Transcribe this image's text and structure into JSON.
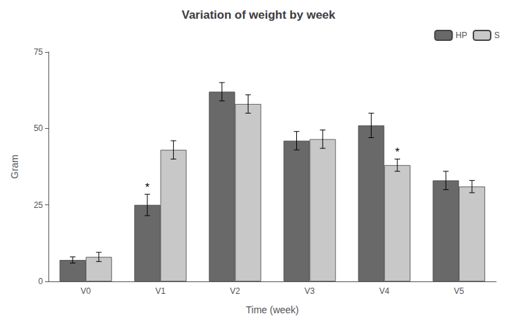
{
  "chart_data": {
    "type": "bar",
    "title": "Variation of weight by week",
    "xlabel": "Time (week)",
    "ylabel": "Gram",
    "categories": [
      "V0",
      "V1",
      "V2",
      "V3",
      "V4",
      "V5"
    ],
    "series": [
      {
        "name": "HP",
        "color": "#696969",
        "values": [
          7,
          25,
          62,
          46,
          51,
          33
        ],
        "errors": [
          1,
          3.5,
          3,
          3,
          4,
          3
        ]
      },
      {
        "name": "S",
        "color": "#c8c8c8",
        "values": [
          8,
          43,
          58,
          46.5,
          38,
          31
        ],
        "errors": [
          1.5,
          3,
          3,
          3,
          2,
          2
        ]
      }
    ],
    "annotations": [
      {
        "text": "*",
        "category": "V1",
        "series": "HP"
      },
      {
        "text": "*",
        "category": "V4",
        "series": "S"
      }
    ],
    "ylim": [
      0,
      75
    ],
    "yticks": [
      0,
      25,
      50,
      75
    ],
    "grid": false,
    "legend": "upper right"
  }
}
